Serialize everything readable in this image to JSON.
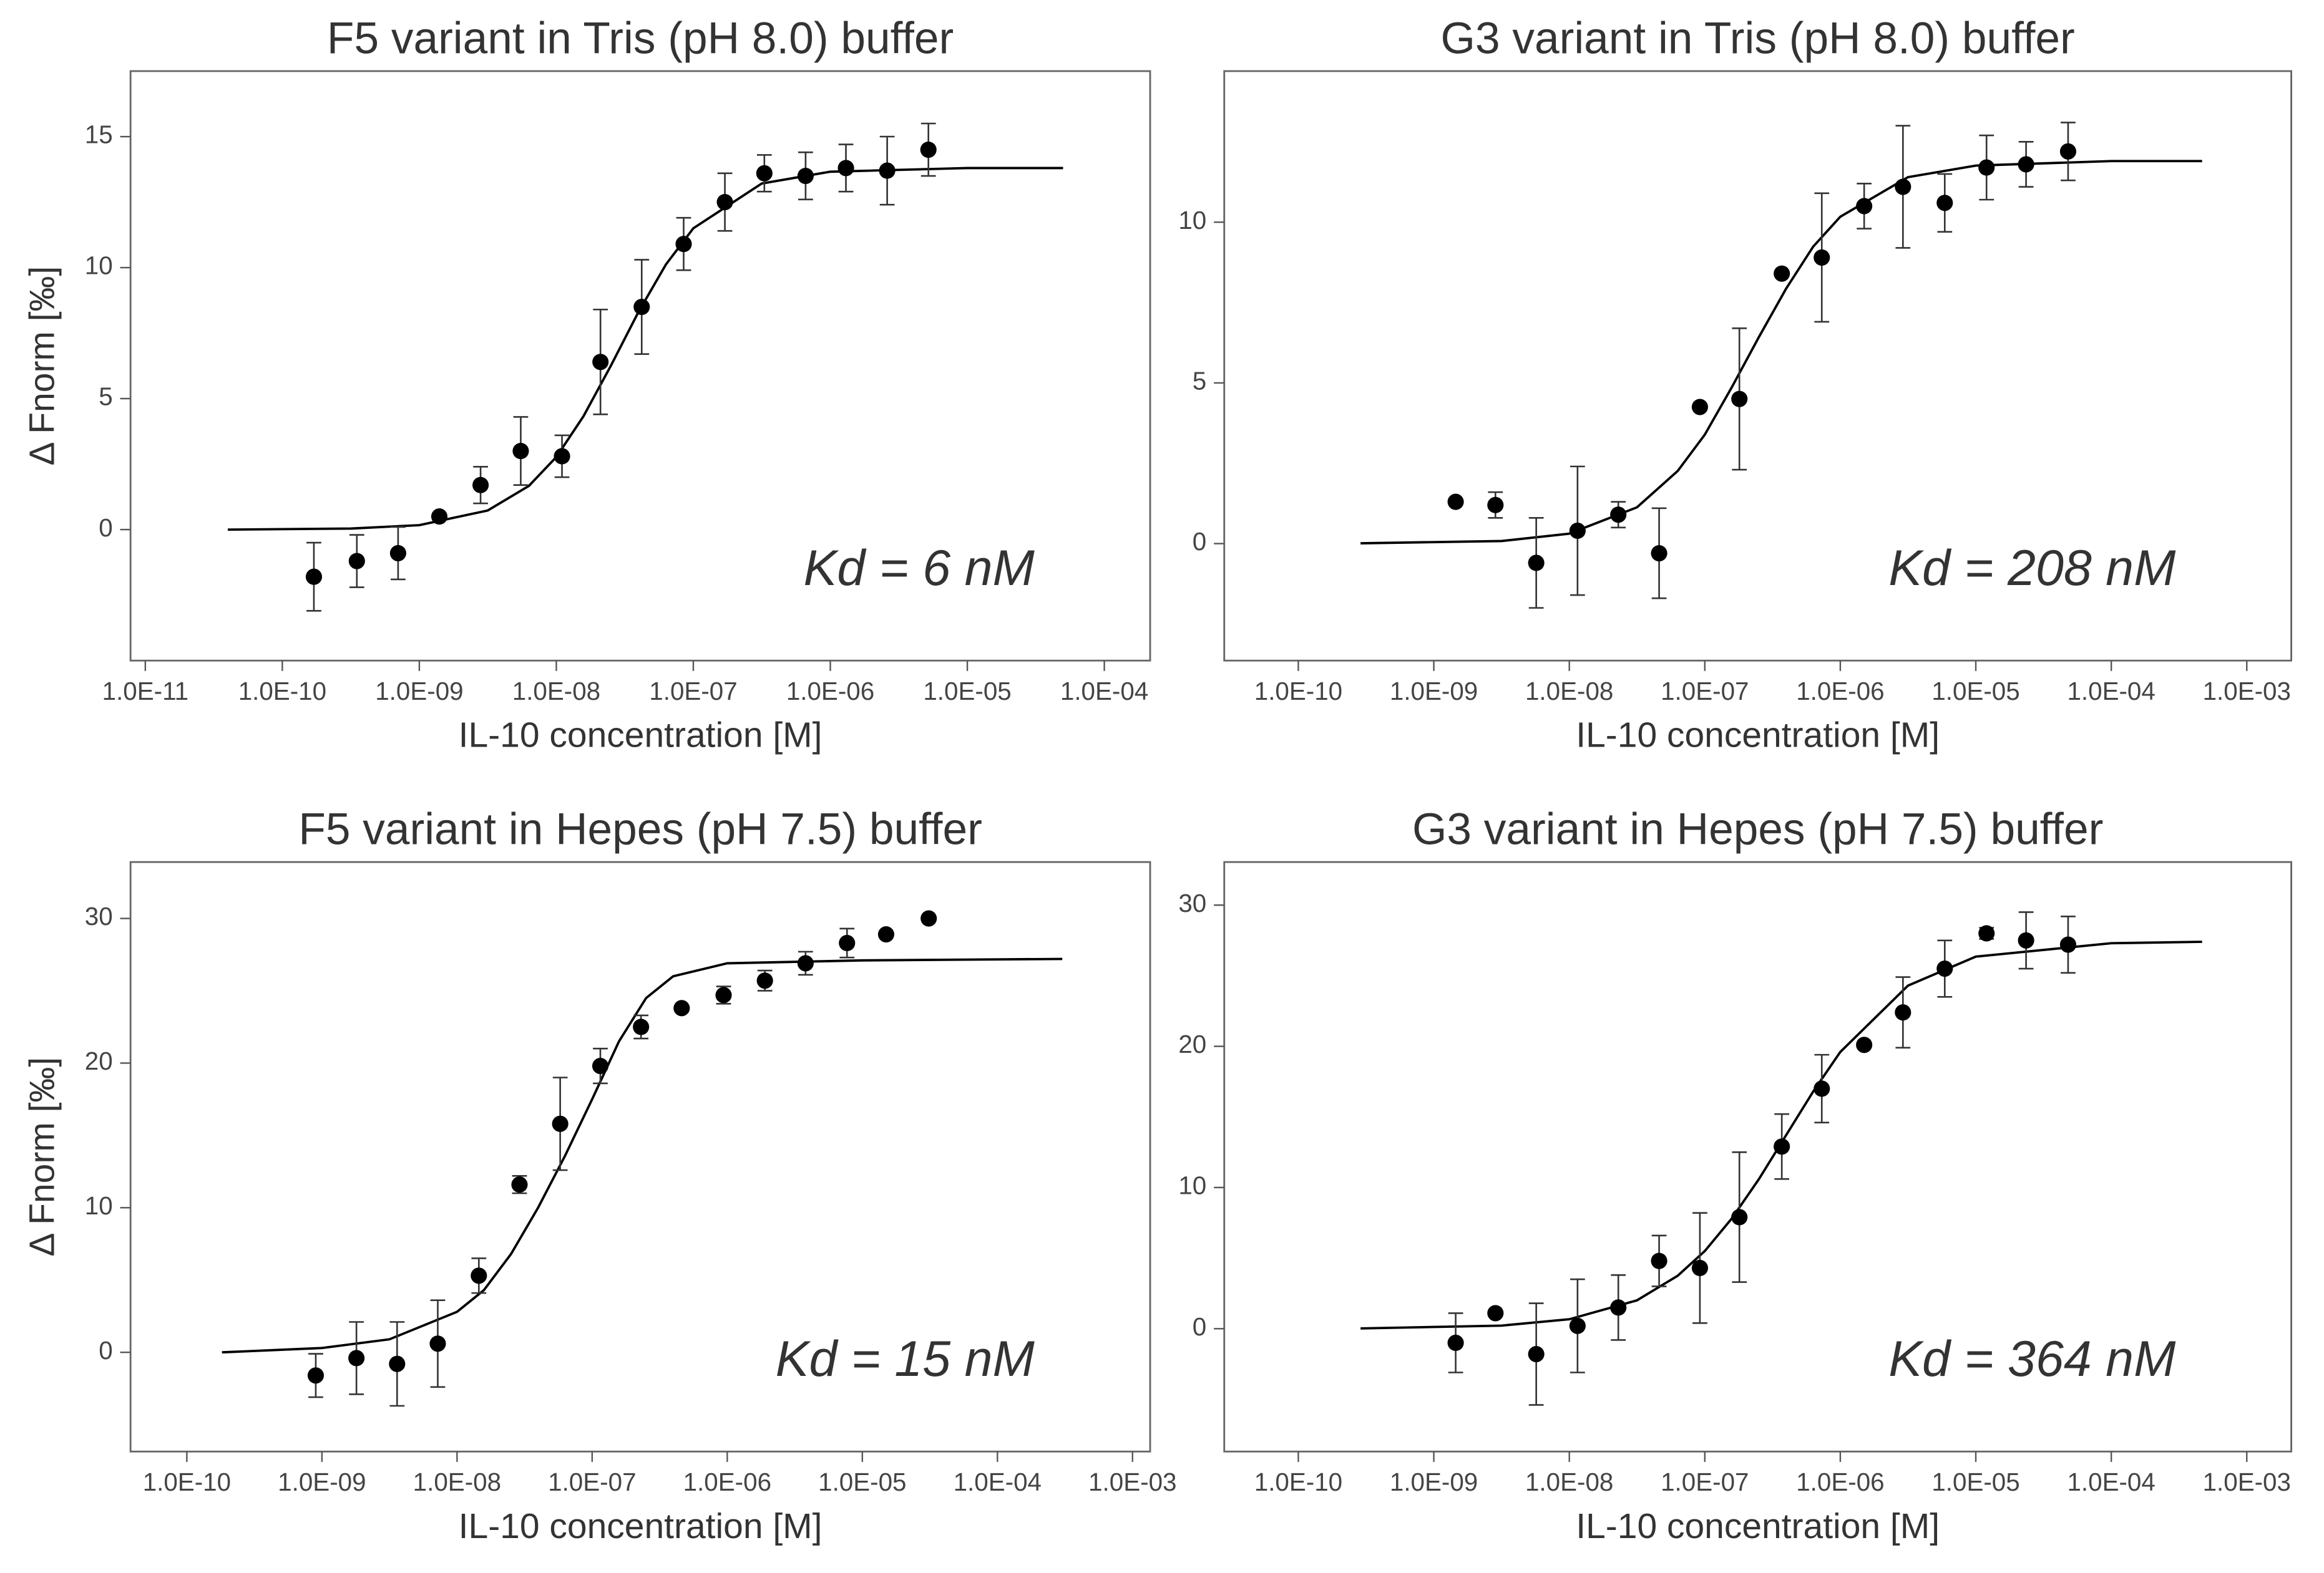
{
  "chart_data": [
    {
      "type": "scatter",
      "title": "F5 variant in Tris (pH 8.0) buffer",
      "xlabel": "IL-10 concentration [M]",
      "ylabel": "Δ Fnorm [‰]",
      "annotation": "Kd = 6 nM",
      "xscale": "log",
      "color": "#000000",
      "x": [
        1.7e-10,
        3.5e-10,
        7e-10,
        1.4e-09,
        2.8e-09,
        5.5e-09,
        1.1e-08,
        2.1e-08,
        4.2e-08,
        8.5e-08,
        1.7e-07,
        3.3e-07,
        6.6e-07,
        1.3e-06,
        2.6e-06,
        5.2e-06
      ],
      "values": [
        -1.8,
        -1.2,
        -0.9,
        0.5,
        1.7,
        3.0,
        2.8,
        6.4,
        8.5,
        10.9,
        12.5,
        13.6,
        13.5,
        13.8,
        13.7,
        14.5
      ],
      "errors": [
        1.3,
        1.0,
        1.0,
        0,
        0.7,
        1.3,
        0.8,
        2.0,
        1.8,
        1.0,
        1.1,
        0.7,
        0.9,
        0.9,
        1.3,
        1.0
      ],
      "fit": {
        "x": [
          4e-11,
          3.16e-10,
          1e-09,
          3.16e-09,
          6.31e-09,
          1e-08,
          1.58e-08,
          2.51e-08,
          3.98e-08,
          6.31e-08,
          1e-07,
          3.16e-07,
          1e-06,
          1e-05,
          5e-05
        ],
        "values": [
          0.0,
          0.04,
          0.17,
          0.73,
          1.67,
          2.77,
          4.33,
          6.27,
          8.31,
          10.12,
          11.5,
          13.21,
          13.66,
          13.8,
          13.8
        ]
      },
      "xlim": [
        7.8e-12,
        0.000216
      ],
      "ylim": [
        -5,
        17.5
      ],
      "xticks": [
        {
          "value": 1e-11,
          "label": "1.0E-11"
        },
        {
          "value": 1e-10,
          "label": "1.0E-10"
        },
        {
          "value": 1e-09,
          "label": "1.0E-09"
        },
        {
          "value": 1e-08,
          "label": "1.0E-08"
        },
        {
          "value": 1e-07,
          "label": "1.0E-07"
        },
        {
          "value": 1e-06,
          "label": "1.0E-06"
        },
        {
          "value": 1e-05,
          "label": "1.0E-05"
        },
        {
          "value": 0.0001,
          "label": "1.0E-04"
        }
      ],
      "yticks": [
        0,
        5,
        10,
        15
      ]
    },
    {
      "type": "scatter",
      "title": "G3 variant in Tris (pH 8.0) buffer",
      "xlabel": "IL-10 concentration [M]",
      "annotation": "Kd = 208 nM",
      "xscale": "log",
      "color": "#000000",
      "x": [
        1.45e-09,
        2.85e-09,
        5.7e-09,
        1.15e-08,
        2.3e-08,
        4.6e-08,
        9.2e-08,
        1.8e-07,
        3.7e-07,
        7.3e-07,
        1.5e-06,
        2.9e-06,
        5.9e-06,
        1.2e-05,
        2.35e-05,
        4.8e-05
      ],
      "values": [
        1.3,
        1.2,
        -0.6,
        0.4,
        0.9,
        -0.3,
        4.25,
        4.5,
        8.4,
        8.9,
        10.5,
        11.1,
        10.6,
        11.7,
        11.8,
        12.2
      ],
      "errors": [
        0,
        0.4,
        1.4,
        2.0,
        0.4,
        1.4,
        0,
        2.2,
        0,
        2.0,
        0.7,
        1.9,
        0.9,
        1.0,
        0.7,
        0.9
      ],
      "fit": {
        "x": [
          2.88e-10,
          3.16e-09,
          1e-08,
          3.16e-08,
          6.31e-08,
          1e-07,
          1.58e-07,
          2.51e-07,
          3.98e-07,
          6.31e-07,
          1e-06,
          3.16e-06,
          1e-05,
          0.0001,
          0.000468
        ],
        "values": [
          0.01,
          0.08,
          0.31,
          1.13,
          2.26,
          3.39,
          4.86,
          6.43,
          7.93,
          9.24,
          10.17,
          11.4,
          11.76,
          11.9,
          11.9
        ]
      },
      "xlim": [
        2.84e-11,
        0.00213
      ],
      "ylim": [
        -3.64,
        14.7
      ],
      "xticks": [
        {
          "value": 1e-10,
          "label": "1.0E-10"
        },
        {
          "value": 1e-09,
          "label": "1.0E-09"
        },
        {
          "value": 1e-08,
          "label": "1.0E-08"
        },
        {
          "value": 1e-07,
          "label": "1.0E-07"
        },
        {
          "value": 1e-06,
          "label": "1.0E-06"
        },
        {
          "value": 1e-05,
          "label": "1.0E-05"
        },
        {
          "value": 0.0001,
          "label": "1.0E-04"
        },
        {
          "value": 0.001,
          "label": "1.0E-03"
        }
      ],
      "yticks": [
        0,
        5,
        10
      ]
    },
    {
      "type": "scatter",
      "title": "F5 variant in Hepes (pH 7.5) buffer",
      "xlabel": "IL-10 concentration [M]",
      "ylabel": "Δ Fnorm [‰]",
      "annotation": "Kd = 15 nM",
      "xscale": "log",
      "color": "#000000",
      "x": [
        9e-10,
        1.8e-09,
        3.6e-09,
        7.2e-09,
        1.45e-08,
        2.9e-08,
        5.8e-08,
        1.15e-07,
        2.3e-07,
        4.6e-07,
        9.4e-07,
        1.9e-06,
        3.8e-06,
        7.7e-06,
        1.5e-05,
        3.1e-05
      ],
      "values": [
        -1.6,
        -0.4,
        -0.8,
        0.6,
        5.3,
        11.6,
        15.8,
        19.8,
        22.5,
        23.8,
        24.7,
        25.7,
        26.9,
        28.3,
        28.9,
        30.0
      ],
      "errors": [
        1.5,
        2.5,
        2.9,
        3.0,
        1.2,
        0.6,
        3.2,
        1.2,
        0.8,
        0,
        0.6,
        0.7,
        0.8,
        1.0,
        0,
        0
      ],
      "fit": {
        "x": [
          1.82e-10,
          1e-09,
          3.16e-09,
          1e-08,
          1.58e-08,
          2.51e-08,
          3.98e-08,
          6.31e-08,
          1e-07,
          1.58e-07,
          2.51e-07,
          3.98e-07,
          1e-06,
          1e-05,
          0.000302
        ],
        "values": [
          0,
          0.3,
          0.9,
          2.8,
          4.3,
          6.8,
          10,
          13.6,
          17.5,
          21.5,
          24.5,
          26,
          26.9,
          27.1,
          27.2
        ]
      },
      "xlim": [
        3.83e-11,
        0.00135
      ],
      "ylim": [
        -6.86,
        33.9
      ],
      "xticks": [
        {
          "value": 1e-10,
          "label": "1.0E-10"
        },
        {
          "value": 1e-09,
          "label": "1.0E-09"
        },
        {
          "value": 1e-08,
          "label": "1.0E-08"
        },
        {
          "value": 1e-07,
          "label": "1.0E-07"
        },
        {
          "value": 1e-06,
          "label": "1.0E-06"
        },
        {
          "value": 1e-05,
          "label": "1.0E-05"
        },
        {
          "value": 0.0001,
          "label": "1.0E-04"
        },
        {
          "value": 0.001,
          "label": "1.0E-03"
        }
      ],
      "yticks": [
        0,
        10,
        20,
        30
      ]
    },
    {
      "type": "scatter",
      "title": "G3 variant in Hepes (pH 7.5) buffer",
      "xlabel": "IL-10 concentration [M]",
      "annotation": "Kd = 364 nM",
      "xscale": "log",
      "color": "#000000",
      "x": [
        1.45e-09,
        2.85e-09,
        5.7e-09,
        1.15e-08,
        2.3e-08,
        4.6e-08,
        9.2e-08,
        1.8e-07,
        3.7e-07,
        7.3e-07,
        1.5e-06,
        2.9e-06,
        5.9e-06,
        1.2e-05,
        2.35e-05,
        4.8e-05
      ],
      "values": [
        -1.0,
        1.1,
        -1.8,
        0.2,
        1.5,
        4.8,
        4.3,
        7.9,
        12.9,
        17.0,
        20.1,
        22.4,
        25.5,
        28.0,
        27.5,
        27.2
      ],
      "errors": [
        2.1,
        0,
        3.6,
        3.3,
        2.3,
        1.8,
        3.9,
        4.6,
        2.3,
        2.4,
        0,
        2.5,
        2.0,
        0.4,
        2.0,
        2.0
      ],
      "fit": {
        "x": [
          2.88e-10,
          3.16e-09,
          1e-08,
          3.16e-08,
          6.31e-08,
          1e-07,
          1.58e-07,
          2.51e-07,
          3.98e-07,
          6.31e-07,
          1e-06,
          3.16e-06,
          1e-05,
          0.0001,
          0.000468
        ],
        "values": [
          0.02,
          0.22,
          0.67,
          2.01,
          3.75,
          5.5,
          7.8,
          10.6,
          13.7,
          16.8,
          19.6,
          24.3,
          26.35,
          27.3,
          27.4
        ]
      },
      "xlim": [
        2.84e-11,
        0.00213
      ],
      "ylim": [
        -8.7,
        33.05
      ],
      "xticks": [
        {
          "value": 1e-10,
          "label": "1.0E-10"
        },
        {
          "value": 1e-09,
          "label": "1.0E-09"
        },
        {
          "value": 1e-08,
          "label": "1.0E-08"
        },
        {
          "value": 1e-07,
          "label": "1.0E-07"
        },
        {
          "value": 1e-06,
          "label": "1.0E-06"
        },
        {
          "value": 1e-05,
          "label": "1.0E-05"
        },
        {
          "value": 0.0001,
          "label": "1.0E-04"
        },
        {
          "value": 0.001,
          "label": "1.0E-03"
        }
      ],
      "yticks": [
        0,
        10,
        20,
        30
      ]
    }
  ]
}
